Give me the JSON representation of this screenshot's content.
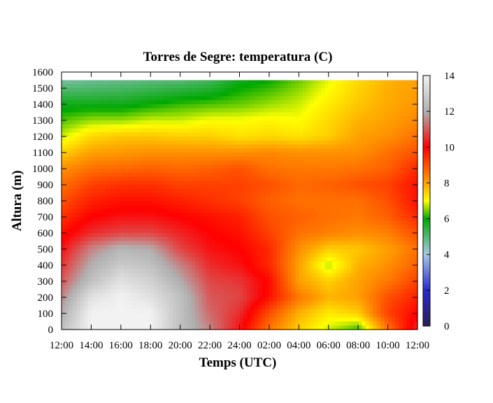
{
  "chart_data": {
    "type": "heatmap",
    "title": "Torres de Segre: temperatura (C)",
    "xlabel": "Temps (UTC)",
    "ylabel": "Altura (m)",
    "x_ticks": [
      "12:00",
      "14:00",
      "16:00",
      "18:00",
      "20:00",
      "22:00",
      "24:00",
      "02:00",
      "04:00",
      "06:00",
      "08:00",
      "10:00",
      "12:00"
    ],
    "x_hours": [
      0,
      2,
      4,
      6,
      8,
      10,
      12,
      14,
      16,
      18,
      20,
      22,
      24
    ],
    "y_ticks": [
      0,
      100,
      200,
      300,
      400,
      500,
      600,
      700,
      800,
      900,
      1000,
      1100,
      1200,
      1300,
      1400,
      1500,
      1600
    ],
    "ylim": [
      0,
      1600
    ],
    "data_ylim": [
      0,
      1550
    ],
    "xlim": [
      0,
      24
    ],
    "colorbar": {
      "min": 0,
      "max": 14,
      "ticks": [
        0,
        2,
        4,
        6,
        8,
        10,
        12,
        14
      ],
      "stops": [
        {
          "value": 0,
          "color": "#2a1f55"
        },
        {
          "value": 2,
          "color": "#2828d0"
        },
        {
          "value": 4,
          "color": "#a8c8e8"
        },
        {
          "value": 6,
          "color": "#00a800"
        },
        {
          "value": 7,
          "color": "#ffff00"
        },
        {
          "value": 8,
          "color": "#ffa000"
        },
        {
          "value": 10,
          "color": "#ff0000"
        },
        {
          "value": 12,
          "color": "#b0b0b0"
        },
        {
          "value": 14,
          "color": "#f2f2f2"
        }
      ]
    },
    "hours": [
      0,
      2,
      4,
      6,
      8,
      10,
      12,
      14,
      16,
      18,
      20,
      22,
      24
    ],
    "heights": [
      0,
      100,
      200,
      300,
      400,
      500,
      600,
      700,
      800,
      900,
      1000,
      1100,
      1200,
      1300,
      1400,
      1550
    ],
    "values": [
      [
        12.5,
        14,
        14,
        14,
        12.5,
        11.5,
        10.2,
        8.5,
        7.5,
        6.8,
        6.2,
        8.5,
        10.5
      ],
      [
        12,
        14,
        14,
        14,
        12.5,
        11.2,
        10.5,
        9,
        7.8,
        7.2,
        7.5,
        9.2,
        10
      ],
      [
        11.5,
        13.5,
        14,
        13.5,
        12.5,
        11,
        10.8,
        9.8,
        8.5,
        7.8,
        8,
        9,
        9.6
      ],
      [
        11,
        12.5,
        13.5,
        13,
        12,
        10.8,
        10.6,
        9.9,
        8,
        7.5,
        8,
        8.5,
        9.2
      ],
      [
        10.6,
        12,
        12.8,
        12.5,
        11.5,
        10.5,
        10.2,
        9.5,
        8,
        6.7,
        7.8,
        8.2,
        8.8
      ],
      [
        10.2,
        11.5,
        12.2,
        12,
        10.8,
        10.2,
        10,
        9.5,
        8.2,
        7.5,
        7.6,
        8,
        8.6
      ],
      [
        9.8,
        10.5,
        10.8,
        10.8,
        10.4,
        10,
        9.8,
        9.2,
        8.6,
        8.4,
        8.2,
        8.4,
        9
      ],
      [
        9.4,
        10,
        10.2,
        10.2,
        10,
        9.8,
        9.6,
        9,
        8.8,
        8.6,
        8.5,
        8.8,
        9.5
      ],
      [
        9,
        9.6,
        9.8,
        9.8,
        9.6,
        9.4,
        9.2,
        8.8,
        8.6,
        8.6,
        8.6,
        9,
        9.8
      ],
      [
        8.6,
        9.2,
        9.4,
        9.4,
        9.2,
        9.2,
        9.2,
        9,
        8.7,
        8.8,
        9,
        9.2,
        9.8
      ],
      [
        8.2,
        8.6,
        8.7,
        8.8,
        8.7,
        8.8,
        9,
        8.6,
        8.5,
        8.5,
        8.6,
        8.8,
        9.5
      ],
      [
        7.5,
        8,
        8.1,
        8.2,
        8.2,
        8.2,
        8.2,
        8.3,
        8.2,
        8.2,
        8.2,
        8.6,
        9
      ],
      [
        6.8,
        7.4,
        7.6,
        7.6,
        7.5,
        7.5,
        7.3,
        7.4,
        7.3,
        7.5,
        8,
        8.2,
        8.6
      ],
      [
        6.3,
        6.6,
        6.6,
        6.8,
        6.8,
        7,
        7,
        7.1,
        7,
        7.4,
        7.8,
        8,
        8.3
      ],
      [
        5.8,
        5.8,
        5.8,
        6,
        6.2,
        6.3,
        6.4,
        6.6,
        6.8,
        7.2,
        7.6,
        7.9,
        8.1
      ],
      [
        4.6,
        4.7,
        4.8,
        4.9,
        5,
        5.2,
        5.8,
        6,
        6.4,
        6.9,
        7.4,
        7.8,
        8
      ]
    ]
  }
}
